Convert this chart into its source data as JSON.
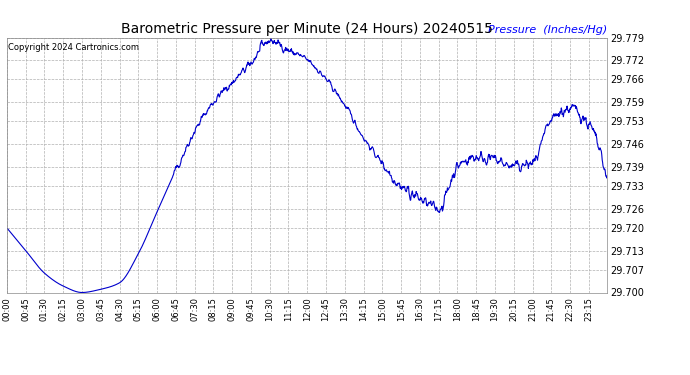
{
  "title": "Barometric Pressure per Minute (24 Hours) 20240515",
  "ylabel": "Pressure  (Inches/Hg)",
  "copyright_text": "Copyright 2024 Cartronics.com",
  "line_color": "#0000cc",
  "background_color": "#ffffff",
  "grid_color": "#b0b0b0",
  "ylabel_color": "#0000ff",
  "title_color": "#000000",
  "copyright_color": "#000000",
  "ylim": [
    29.7,
    29.779
  ],
  "yticks": [
    29.7,
    29.707,
    29.713,
    29.72,
    29.726,
    29.733,
    29.739,
    29.746,
    29.753,
    29.759,
    29.766,
    29.772,
    29.779
  ],
  "xtick_labels": [
    "00:00",
    "00:45",
    "01:30",
    "02:15",
    "03:00",
    "03:45",
    "04:30",
    "05:15",
    "06:00",
    "06:45",
    "07:30",
    "08:15",
    "09:00",
    "09:45",
    "10:30",
    "11:15",
    "12:00",
    "12:45",
    "13:30",
    "14:15",
    "15:00",
    "15:45",
    "16:30",
    "17:15",
    "18:00",
    "18:45",
    "19:30",
    "20:15",
    "21:00",
    "21:45",
    "22:30",
    "23:15"
  ],
  "key_times_minutes": [
    0,
    45,
    90,
    135,
    180,
    225,
    270,
    315,
    360,
    405,
    450,
    495,
    540,
    585,
    630,
    675,
    720,
    765,
    810,
    855,
    900,
    945,
    990,
    1035,
    1080,
    1125,
    1170,
    1215,
    1260,
    1305,
    1350,
    1395,
    1439
  ],
  "key_pressures": [
    29.72,
    29.713,
    29.706,
    29.702,
    29.7,
    29.701,
    29.703,
    29.712,
    29.725,
    29.738,
    29.75,
    29.759,
    29.765,
    29.771,
    29.778,
    29.775,
    29.772,
    29.766,
    29.758,
    29.748,
    29.74,
    29.733,
    29.729,
    29.726,
    29.739,
    29.742,
    29.741,
    29.739,
    29.74,
    29.753,
    29.757,
    29.752,
    29.735
  ]
}
